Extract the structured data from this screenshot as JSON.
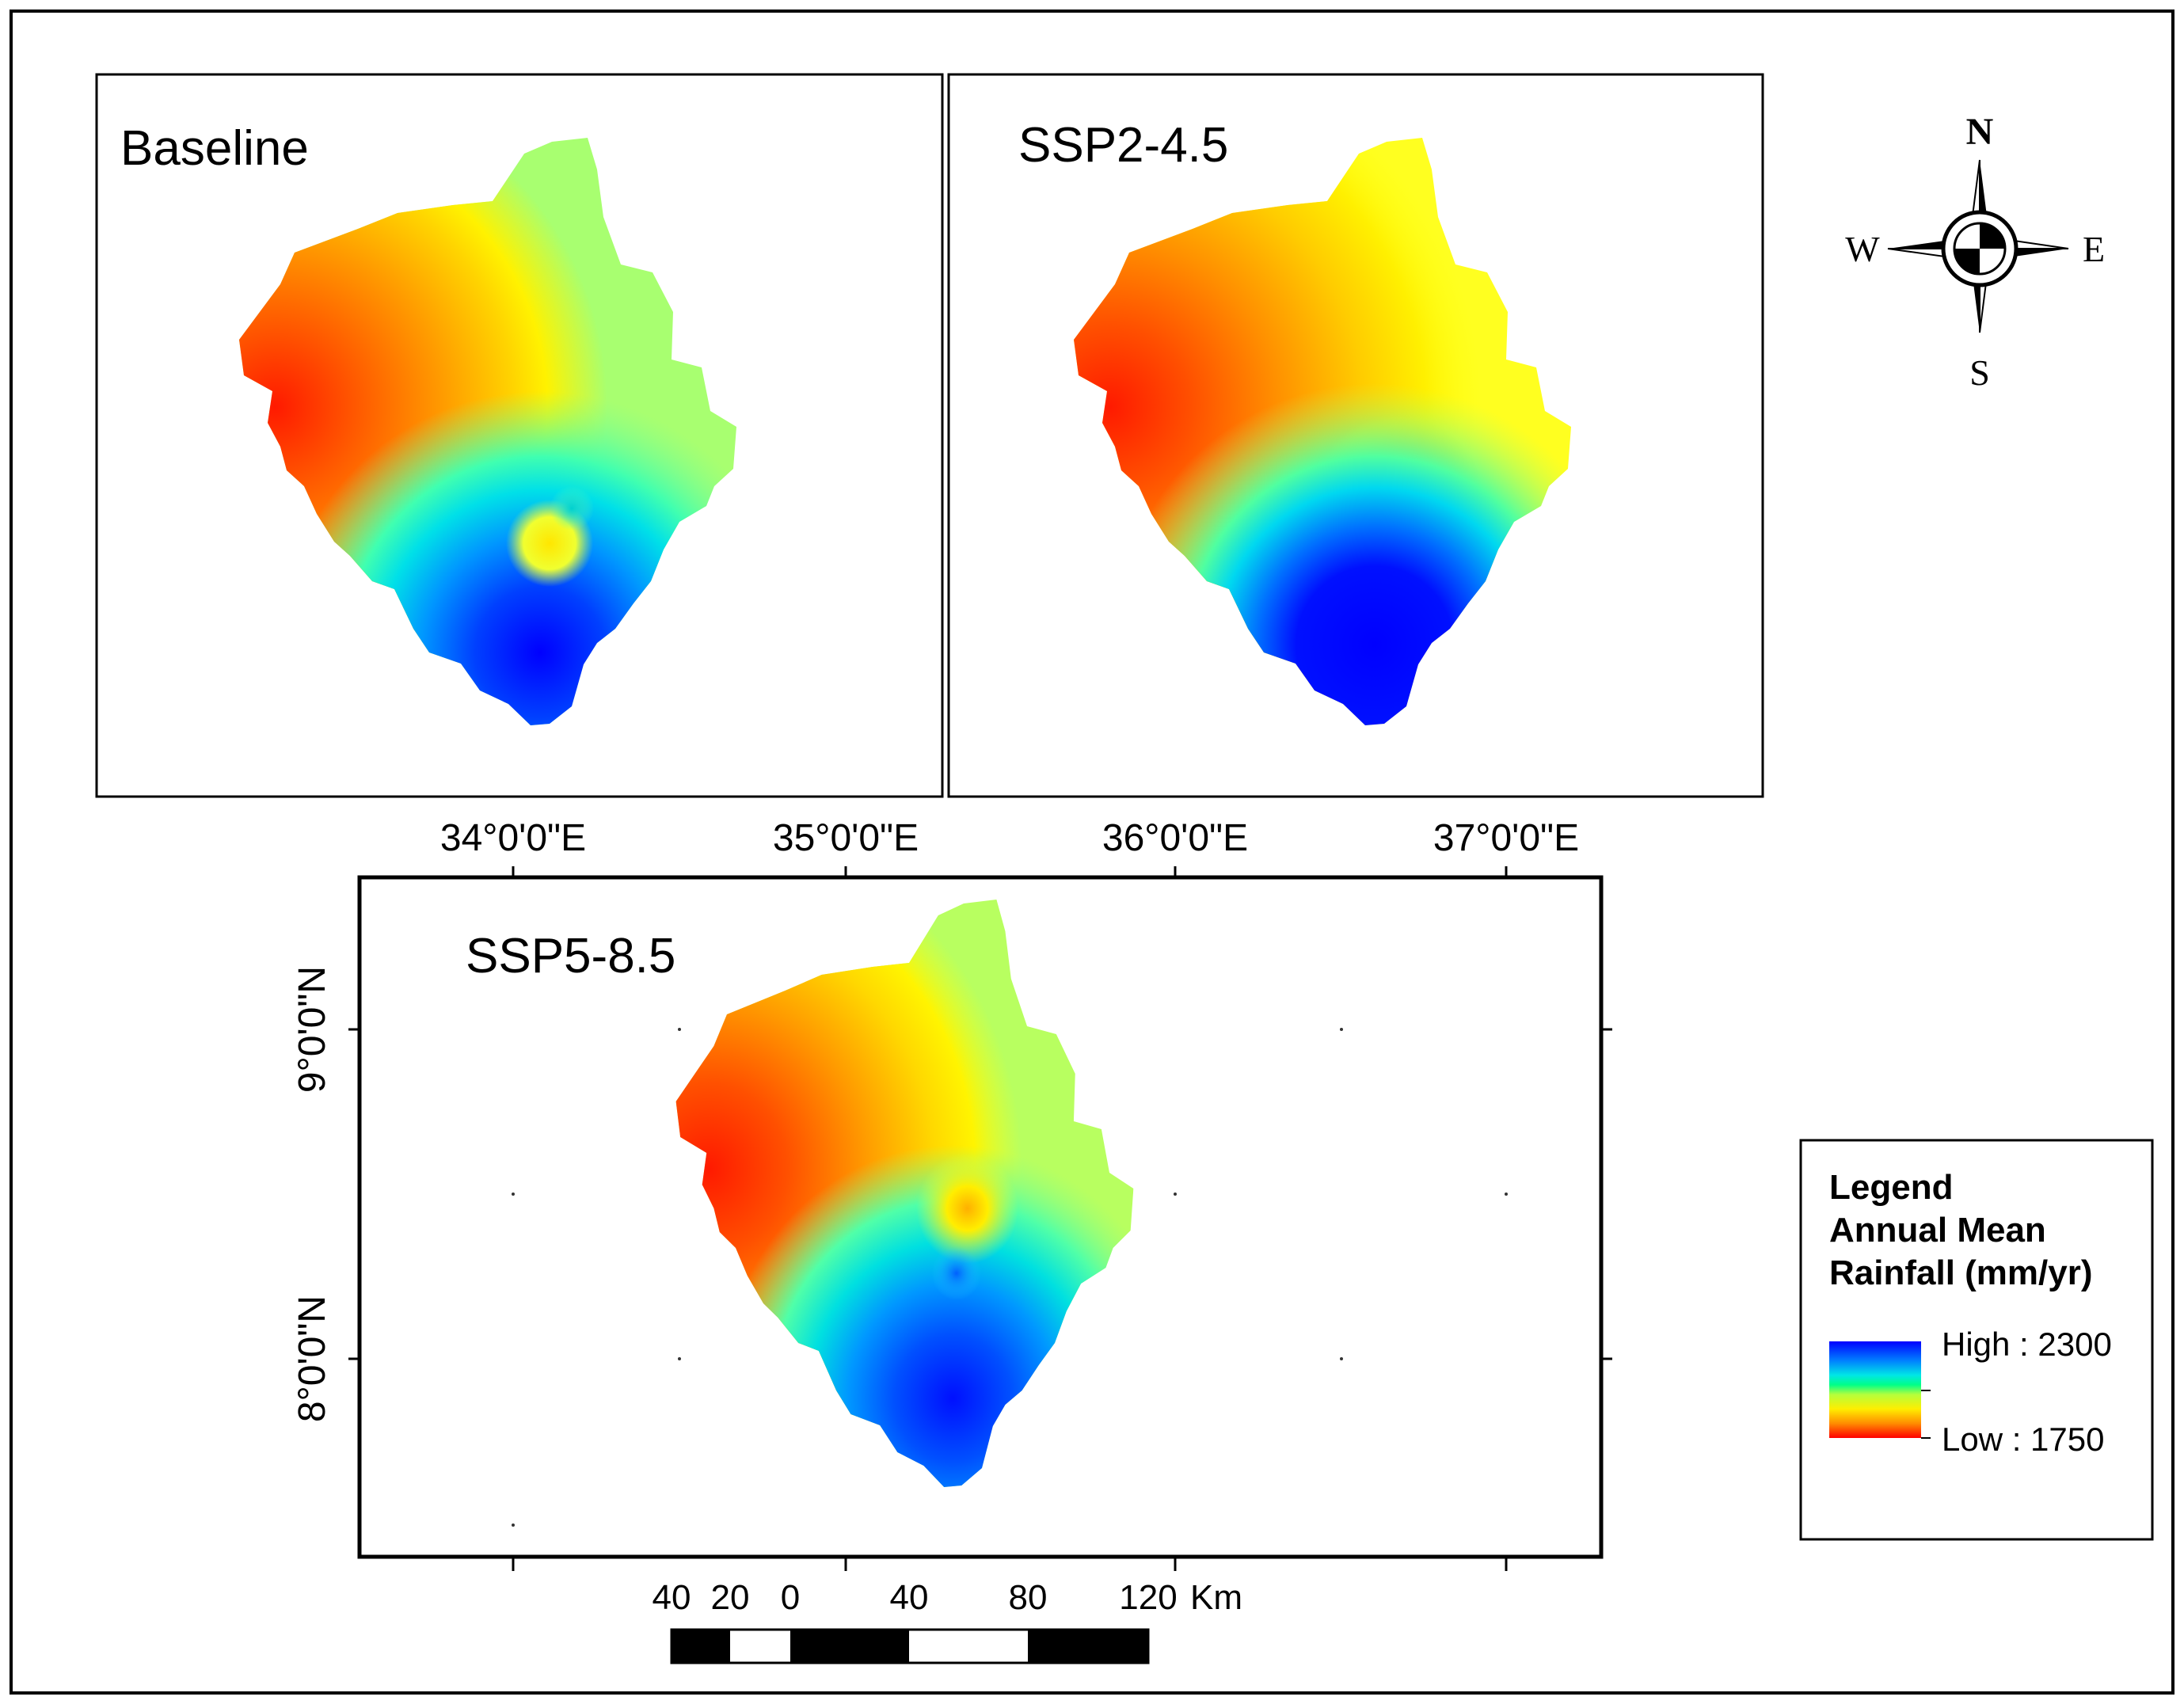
{
  "panels": {
    "baseline": {
      "title": "Baseline"
    },
    "ssp245": {
      "title": "SSP2-4.5"
    },
    "ssp585": {
      "title": "SSP5-8.5"
    }
  },
  "axes": {
    "lon_labels": [
      "34°0'0\"E",
      "35°0'0\"E",
      "36°0'0\"E",
      "37°0'0\"E"
    ],
    "lat_labels": [
      "9°0'0\"N",
      "8°0'0\"N"
    ]
  },
  "compass": {
    "n": "N",
    "s": "S",
    "e": "E",
    "w": "W"
  },
  "legend": {
    "title": "Legend",
    "subtitle_1": "Annual Mean",
    "subtitle_2": "Rainfall (mm/yr)",
    "high_label": "High : 2300",
    "low_label": "Low : 1750",
    "high_value": 2300,
    "low_value": 1750,
    "color_high": "#0000ff",
    "color_mid": "#00ff88",
    "color_low": "#ff0000"
  },
  "scale_bar": {
    "labels": [
      "40",
      "20",
      "0",
      "40",
      "80",
      "120"
    ],
    "unit": "Km"
  },
  "colors": {
    "frame": "#000000",
    "red": "#ff1a00",
    "orange": "#ff8c00",
    "yellow": "#ffee00",
    "yellow_green": "#c8ff3c",
    "green": "#8cff7a",
    "cyan": "#00e6e6",
    "light_blue": "#0096ff",
    "blue": "#0000ff"
  }
}
